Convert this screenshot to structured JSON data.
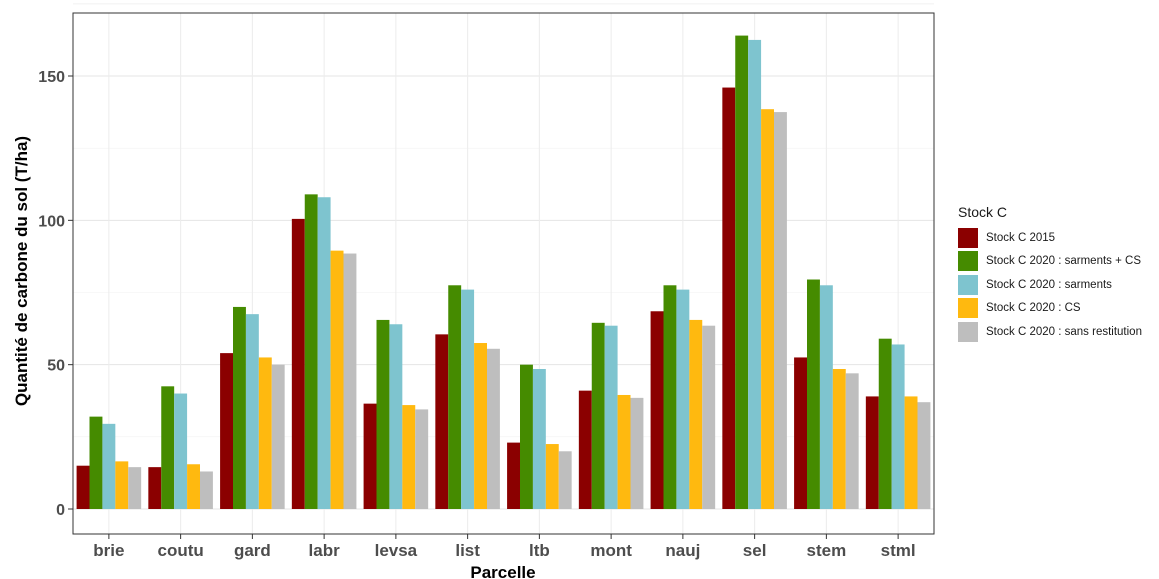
{
  "chart_data": {
    "type": "bar",
    "title": "",
    "xlabel": "Parcelle",
    "ylabel": "Quantité de carbone du sol (T/ha)",
    "ylim": [
      0,
      170
    ],
    "yticks": [
      0,
      50,
      100,
      150
    ],
    "grid": true,
    "legend_title": "Stock C",
    "legend_position": "right",
    "categories": [
      "brie",
      "coutu",
      "gard",
      "labr",
      "levsa",
      "list",
      "ltb",
      "mont",
      "nauj",
      "sel",
      "stem",
      "stml"
    ],
    "series": [
      {
        "name": "Stock C 2015",
        "color": "#8B0000",
        "values": [
          15,
          14.5,
          54,
          100.5,
          36.5,
          60.5,
          23,
          41,
          68.5,
          146,
          52.5,
          39
        ]
      },
      {
        "name": "Stock C 2020 : sarments + CS",
        "color": "#458B00",
        "values": [
          32,
          42.5,
          70,
          109,
          65.5,
          77.5,
          50,
          64.5,
          77.5,
          164,
          79.5,
          59
        ]
      },
      {
        "name": "Stock C 2020 : sarments",
        "color": "#7EC4CF",
        "values": [
          29.5,
          40,
          67.5,
          108,
          64,
          76,
          48.5,
          63.5,
          76,
          162.5,
          77.5,
          57
        ]
      },
      {
        "name": "Stock C 2020 : CS",
        "color": "#FFB90F",
        "values": [
          16.5,
          15.5,
          52.5,
          89.5,
          36,
          57.5,
          22.5,
          39.5,
          65.5,
          138.5,
          48.5,
          39
        ]
      },
      {
        "name": "Stock C 2020 : sans restitution",
        "color": "#BEBEBE",
        "values": [
          14.5,
          13,
          50,
          88.5,
          34.5,
          55.5,
          20,
          38.5,
          63.5,
          137.5,
          47,
          37
        ]
      }
    ]
  }
}
